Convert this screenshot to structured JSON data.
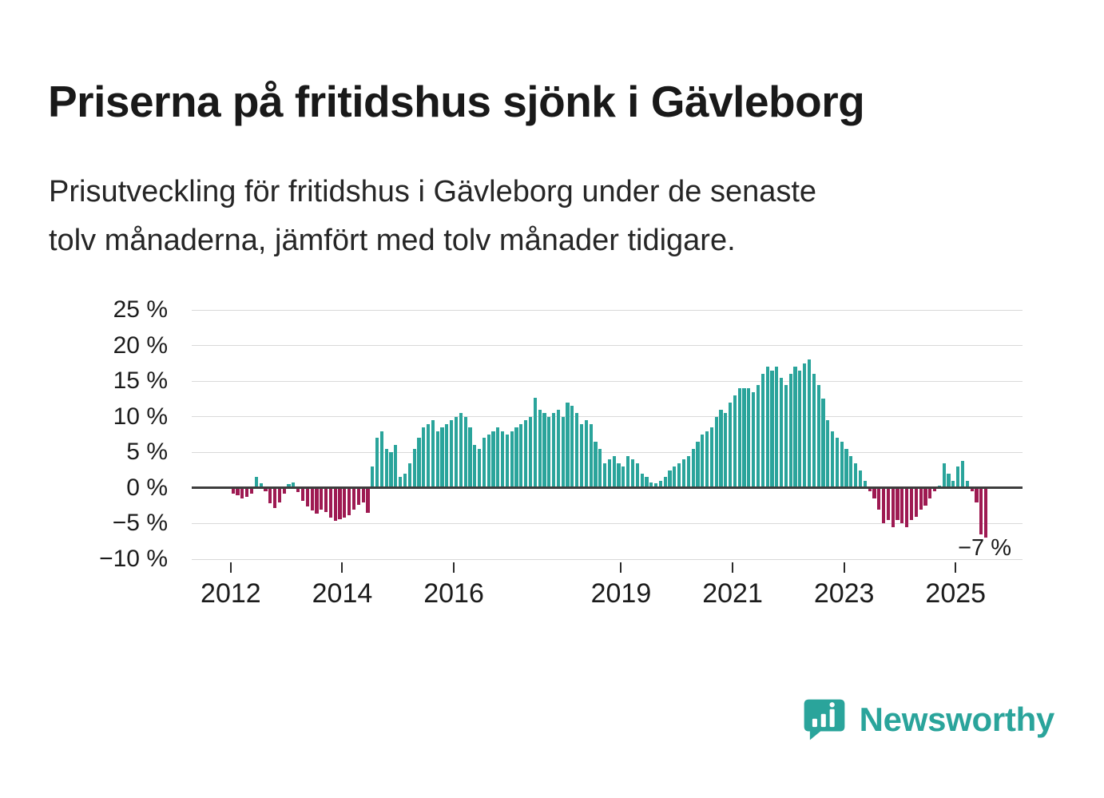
{
  "page": {
    "title": "Priserna på fritidshus sjönk i Gävleborg",
    "subtitle_lines": [
      "Prisutveckling för fritidshus i Gävleborg under de senaste",
      "tolv månaderna, jämfört med tolv månader tidigare."
    ]
  },
  "branding": {
    "name": "Newsworthy",
    "color": "#2aa49b",
    "icon": "bar-chart-speech-bubble-icon"
  },
  "chart_data": {
    "type": "bar",
    "title": "Priserna på fritidshus sjönk i Gävleborg",
    "unit": "%",
    "frequency": "monthly",
    "x_start": "2012-01",
    "x_end": "2025-07",
    "values": [
      -0.8,
      -1.0,
      -1.5,
      -1.2,
      -0.8,
      1.5,
      0.7,
      -0.5,
      -2.2,
      -2.8,
      -2.0,
      -0.8,
      0.6,
      0.8,
      -0.6,
      -1.8,
      -2.6,
      -3.2,
      -3.6,
      -3.0,
      -3.4,
      -4.2,
      -4.6,
      -4.4,
      -4.2,
      -3.8,
      -3.0,
      -2.4,
      -2.0,
      -3.5,
      3.0,
      7.0,
      8.0,
      5.5,
      5.0,
      6.0,
      1.5,
      2.0,
      3.5,
      5.5,
      7.0,
      8.5,
      9.0,
      9.5,
      8.0,
      8.5,
      9.0,
      9.5,
      10.0,
      10.5,
      10.0,
      8.5,
      6.0,
      5.5,
      7.0,
      7.5,
      8.0,
      8.5,
      8.0,
      7.5,
      8.0,
      8.5,
      9.0,
      9.5,
      10.0,
      12.7,
      11.0,
      10.5,
      10.0,
      10.5,
      11.0,
      10.0,
      12.0,
      11.5,
      10.5,
      9.0,
      9.5,
      9.0,
      6.5,
      5.5,
      3.5,
      4.0,
      4.5,
      3.5,
      3.0,
      4.5,
      4.0,
      3.5,
      2.0,
      1.5,
      0.8,
      0.7,
      1.0,
      1.5,
      2.5,
      3.0,
      3.5,
      4.0,
      4.5,
      5.5,
      6.5,
      7.5,
      8.0,
      8.5,
      10.0,
      11.0,
      10.5,
      12.0,
      13.0,
      14.0,
      14.0,
      14.0,
      13.5,
      14.5,
      16.0,
      17.0,
      16.5,
      17.0,
      15.5,
      14.5,
      16.0,
      17.0,
      16.5,
      17.5,
      18.0,
      16.0,
      14.5,
      12.5,
      9.5,
      8.0,
      7.0,
      6.5,
      5.5,
      4.5,
      3.5,
      2.5,
      1.0,
      -0.5,
      -1.5,
      -3.0,
      -5.0,
      -4.5,
      -5.5,
      -4.5,
      -5.0,
      -5.5,
      -4.5,
      -4.0,
      -3.0,
      -2.5,
      -1.5,
      -0.5,
      0.3,
      3.5,
      2.0,
      1.0,
      3.0,
      3.8,
      1.0,
      -0.5,
      -2.0,
      -6.5,
      -7.0
    ],
    "ylim": [
      -10,
      25
    ],
    "x_domain": [
      2011.3,
      2026.2
    ],
    "yticks": [
      {
        "value": 25,
        "label": "25 %"
      },
      {
        "value": 20,
        "label": "20 %"
      },
      {
        "value": 15,
        "label": "15 %"
      },
      {
        "value": 10,
        "label": "10 %"
      },
      {
        "value": 5,
        "label": "5 %"
      },
      {
        "value": 0,
        "label": "0 %"
      },
      {
        "value": -5,
        "label": "−5 %"
      },
      {
        "value": -10,
        "label": "−10 %"
      }
    ],
    "xticks": [
      {
        "value": 2012,
        "label": "2012"
      },
      {
        "value": 2014,
        "label": "2014"
      },
      {
        "value": 2016,
        "label": "2016"
      },
      {
        "value": 2019,
        "label": "2019"
      },
      {
        "value": 2021,
        "label": "2021"
      },
      {
        "value": 2023,
        "label": "2023"
      },
      {
        "value": 2025,
        "label": "2025"
      }
    ],
    "colors": {
      "positive": "#2aa49b",
      "negative": "#9e1a52",
      "gridline": "#d9d9d9",
      "zero_line": "#3d3d3d"
    },
    "grid": true,
    "legend": false,
    "annotation": {
      "text": "−7 %",
      "attach": "last-bar"
    }
  }
}
